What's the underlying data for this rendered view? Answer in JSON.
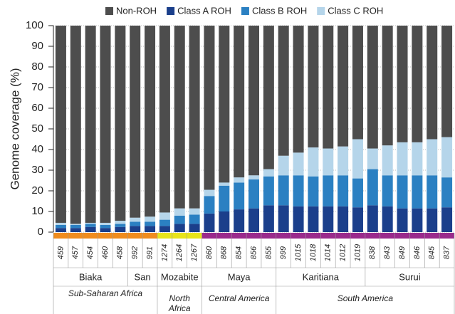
{
  "chart_data": {
    "type": "stacked-bar",
    "y_label": "Genome coverage (%)",
    "ylim": [
      0,
      100
    ],
    "yticks": [
      0,
      10,
      20,
      30,
      40,
      50,
      60,
      70,
      80,
      90,
      100
    ],
    "grid": true,
    "regions": [
      {
        "name": "Sub-Saharan Africa",
        "color": "#f08c1e",
        "populations": [
          {
            "name": "Biaka",
            "samples": [
              "459",
              "457",
              "454",
              "460",
              "458"
            ]
          },
          {
            "name": "San",
            "samples": [
              "992",
              "991"
            ]
          }
        ]
      },
      {
        "name": "North Africa",
        "color": "#e8e41a",
        "populations": [
          {
            "name": "Mozabite",
            "samples": [
              "1274",
              "1264",
              "1267"
            ]
          }
        ]
      },
      {
        "name": "Central America",
        "color": "#9a2a8c",
        "populations": [
          {
            "name": "Maya",
            "samples": [
              "860",
              "868",
              "854",
              "856",
              "855"
            ]
          }
        ]
      },
      {
        "name": "South America",
        "color": "#9a2a8c",
        "populations": [
          {
            "name": "Karitiana",
            "samples": [
              "999",
              "1015",
              "1018",
              "1014",
              "1012",
              "1019"
            ]
          },
          {
            "name": "Surui",
            "samples": [
              "838",
              "843",
              "849",
              "846",
              "845",
              "837"
            ]
          }
        ]
      }
    ],
    "series": [
      {
        "name": "Class A ROH",
        "color": "#1b3f8b",
        "values": [
          2,
          2,
          2.5,
          2,
          2.5,
          3,
          3,
          3,
          4,
          4,
          9,
          10,
          11,
          11.5,
          13,
          13,
          12.5,
          12.5,
          12.5,
          12.5,
          12,
          13,
          12.5,
          11.5,
          11.5,
          11.5,
          12
        ]
      },
      {
        "name": "Class B ROH",
        "color": "#2b80c2",
        "values": [
          1.5,
          1.5,
          1.5,
          1.5,
          1.5,
          2,
          2,
          3,
          4,
          4.5,
          8.5,
          12.5,
          13,
          14,
          14,
          14.5,
          15,
          14.5,
          15,
          15,
          14,
          17.5,
          15,
          16,
          16,
          16,
          14.5
        ]
      },
      {
        "name": "Class C ROH",
        "color": "#b5d5ea",
        "values": [
          1,
          0.5,
          0.5,
          1,
          1.5,
          2,
          2.5,
          3.5,
          3.5,
          3,
          3,
          1.5,
          2.5,
          2,
          3.5,
          9.5,
          11,
          14,
          13,
          14,
          19,
          10,
          14.5,
          16,
          16,
          17.5,
          19.5
        ]
      },
      {
        "name": "Non-ROH",
        "color": "#4d4d4d",
        "values": [
          95.5,
          96,
          95.5,
          95.5,
          94.5,
          93,
          92.5,
          90.5,
          88.5,
          88.5,
          79.5,
          76,
          73.5,
          72.5,
          69.5,
          63,
          61.5,
          59,
          59.5,
          58.5,
          55,
          59.5,
          58,
          56.5,
          56.5,
          55,
          54
        ]
      }
    ]
  }
}
